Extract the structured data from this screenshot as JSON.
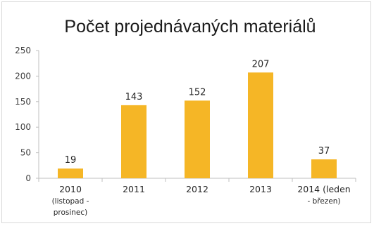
{
  "chart_data": {
    "type": "bar",
    "title": "Počet projednávaných materiálů",
    "categories": [
      [
        "2010",
        "(listopad -",
        "prosinec)"
      ],
      [
        "2011"
      ],
      [
        "2012"
      ],
      [
        "2013"
      ],
      [
        "2014 (leden",
        "- březen)"
      ]
    ],
    "values": [
      19,
      143,
      152,
      207,
      37
    ],
    "data_labels": [
      "19",
      "143",
      "152",
      "207",
      "37"
    ],
    "ylim": [
      0,
      250
    ],
    "yticks": [
      "0",
      "50",
      "100",
      "150",
      "200",
      "250"
    ],
    "xlabel": "",
    "ylabel": "",
    "grid": false,
    "legend": "none",
    "bar_color": "#f5b626",
    "axis_color": "#bfbfbf"
  }
}
